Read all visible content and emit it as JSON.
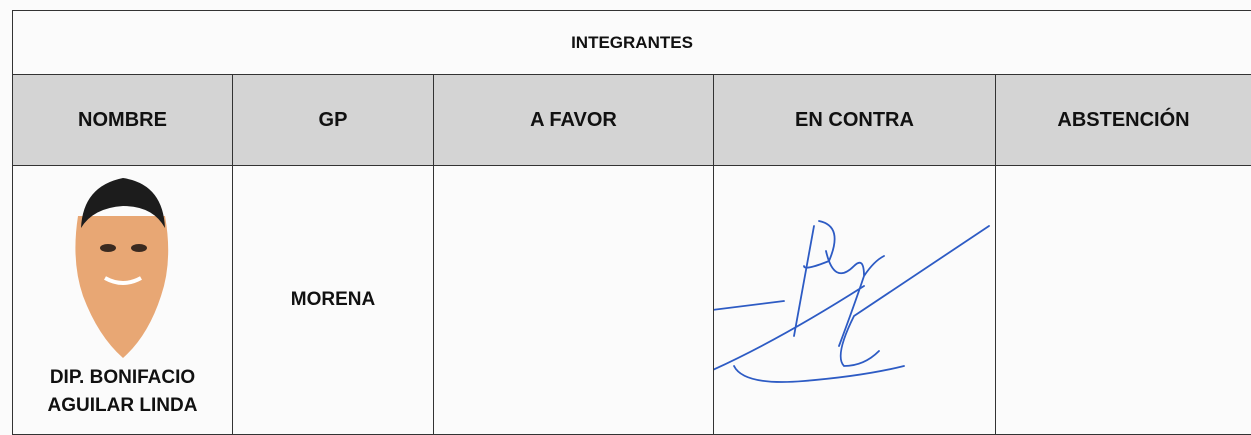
{
  "table": {
    "title": "INTEGRANTES",
    "headers": [
      "NOMBRE",
      "GP",
      "A FAVOR",
      "EN CONTRA",
      "ABSTENCIÓN"
    ],
    "rows": [
      {
        "name": "DIP. BONIFACIO AGUILAR LINDA",
        "party": "MORENA"
      }
    ]
  }
}
